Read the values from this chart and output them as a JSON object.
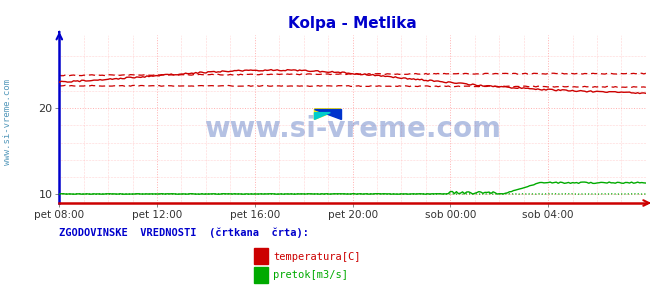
{
  "title": "Kolpa - Metlika",
  "title_color": "#0000cc",
  "bg_color": "#ffffff",
  "plot_bg_color": "#ffffff",
  "grid_color": "#ffb0b0",
  "ylabel_text": "www.si-vreme.com",
  "ylabel_color": "#5599bb",
  "xlim": [
    0,
    288
  ],
  "ylim": [
    9.0,
    28.5
  ],
  "yticks": [
    10,
    20
  ],
  "xtick_labels": [
    "pet 08:00",
    "pet 12:00",
    "pet 16:00",
    "pet 20:00",
    "sob 00:00",
    "sob 04:00"
  ],
  "xtick_positions": [
    0,
    48,
    96,
    144,
    192,
    240
  ],
  "temp_color": "#cc0000",
  "flow_color": "#00aa00",
  "legend_text": "ZGODOVINSKE  VREDNOSTI  (črtkana  črta):",
  "legend_color": "#0000cc",
  "legend_temp": "temperatura[C]",
  "legend_flow": "pretok[m3/s]",
  "watermark": "www.si-vreme.com",
  "watermark_color": "#4466bb",
  "n_points": 289
}
